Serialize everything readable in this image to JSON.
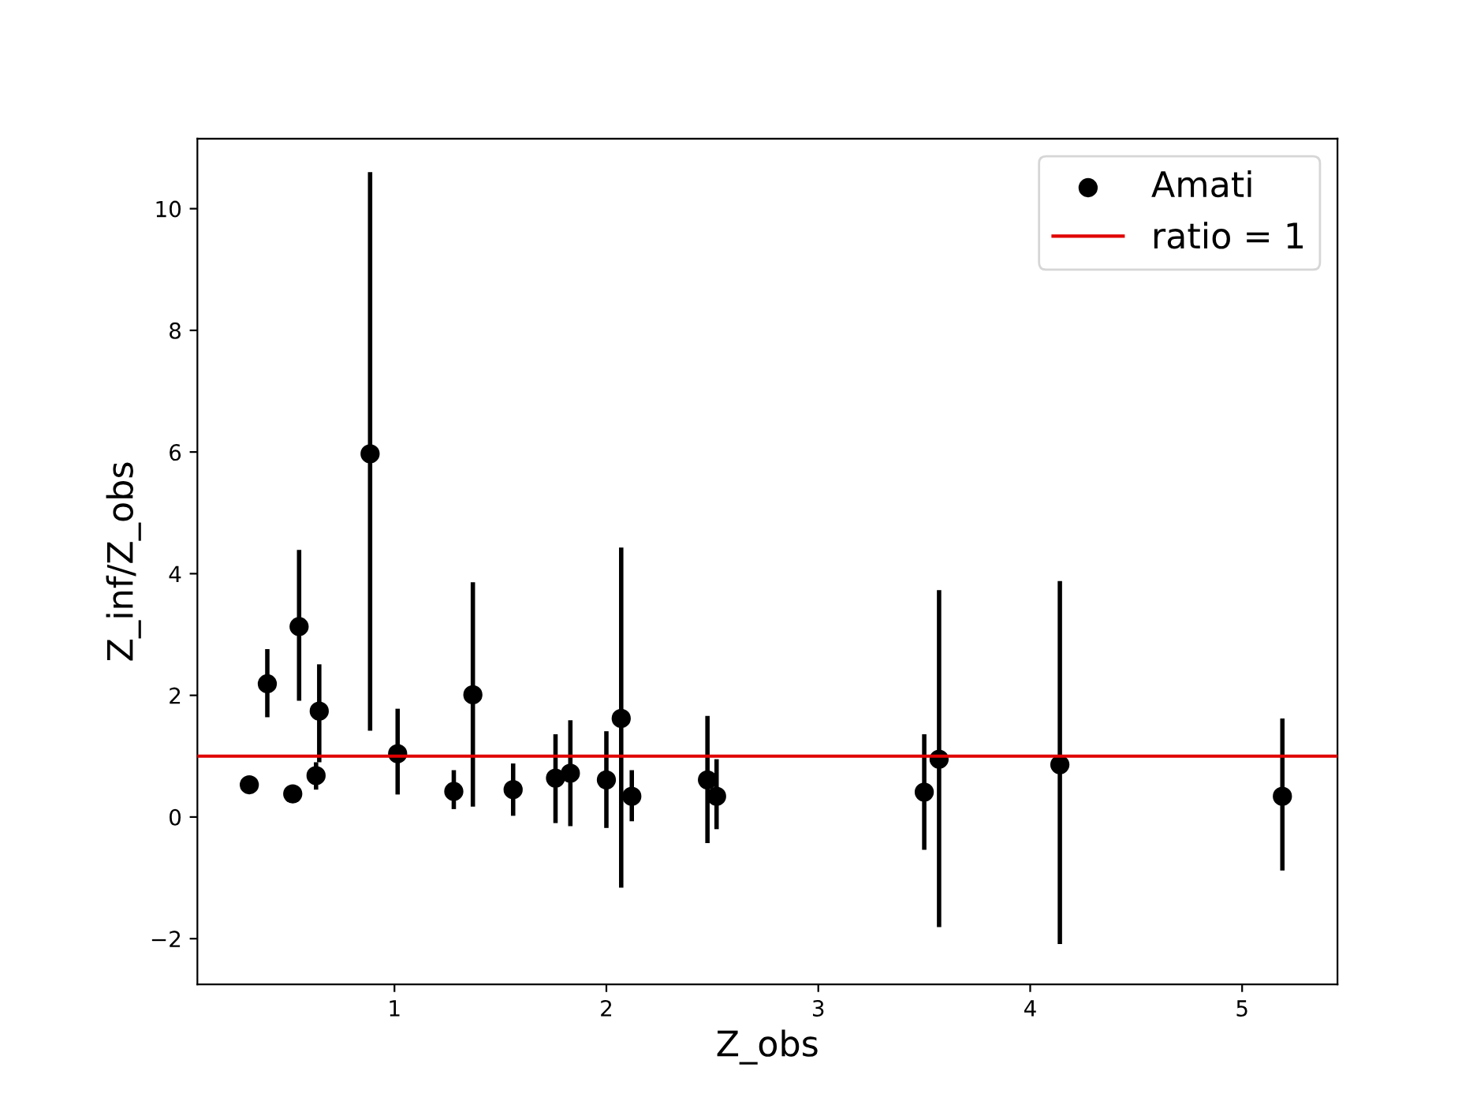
{
  "chart_data": {
    "type": "scatter",
    "xlabel": "Z_obs",
    "ylabel": "Z_inf/Z_obs",
    "xlim": [
      0.07,
      5.45
    ],
    "xticks": [
      1,
      2,
      3,
      4,
      5
    ],
    "ylim": [
      -2.75,
      11.15
    ],
    "yticks": [
      {
        "value": -2,
        "label": "−2"
      },
      0,
      2,
      4,
      6,
      8,
      10
    ],
    "legend": "top right",
    "marker": "circle",
    "grid": false,
    "series": [
      {
        "name": "Amati",
        "color": "#000000",
        "x": [
          0.315,
          0.4,
          0.52,
          0.55,
          0.63,
          0.645,
          0.885,
          1.015,
          1.28,
          1.37,
          1.56,
          1.76,
          1.83,
          2.0,
          2.07,
          2.12,
          2.477,
          2.52,
          3.5,
          3.57,
          4.14,
          5.19
        ],
        "values": [
          0.53,
          2.19,
          0.38,
          3.13,
          0.68,
          1.74,
          5.97,
          1.04,
          0.42,
          2.01,
          0.45,
          0.64,
          0.72,
          0.61,
          1.62,
          0.34,
          0.61,
          0.34,
          0.41,
          0.95,
          0.86,
          0.34
        ],
        "errors": [
          null,
          [
            1.64,
            2.76
          ],
          null,
          [
            1.91,
            4.39
          ],
          [
            0.45,
            0.9
          ],
          [
            0.9,
            2.51
          ],
          [
            1.42,
            10.6
          ],
          [
            0.37,
            1.78
          ],
          [
            0.13,
            0.77
          ],
          [
            0.17,
            3.86
          ],
          [
            0.02,
            0.88
          ],
          [
            -0.1,
            1.36
          ],
          [
            -0.15,
            1.59
          ],
          [
            -0.18,
            1.41
          ],
          [
            -1.16,
            4.43
          ],
          [
            -0.07,
            0.77
          ],
          [
            -0.43,
            1.66
          ],
          [
            -0.2,
            0.95
          ],
          [
            -0.54,
            1.36
          ],
          [
            -1.81,
            3.73
          ],
          [
            -2.09,
            3.88
          ],
          [
            -0.88,
            1.62
          ]
        ]
      }
    ],
    "ref_lines": [
      {
        "axis": "y",
        "value": 1,
        "label": "ratio = 1",
        "color": "#e00000",
        "line_style": "solid"
      }
    ]
  }
}
